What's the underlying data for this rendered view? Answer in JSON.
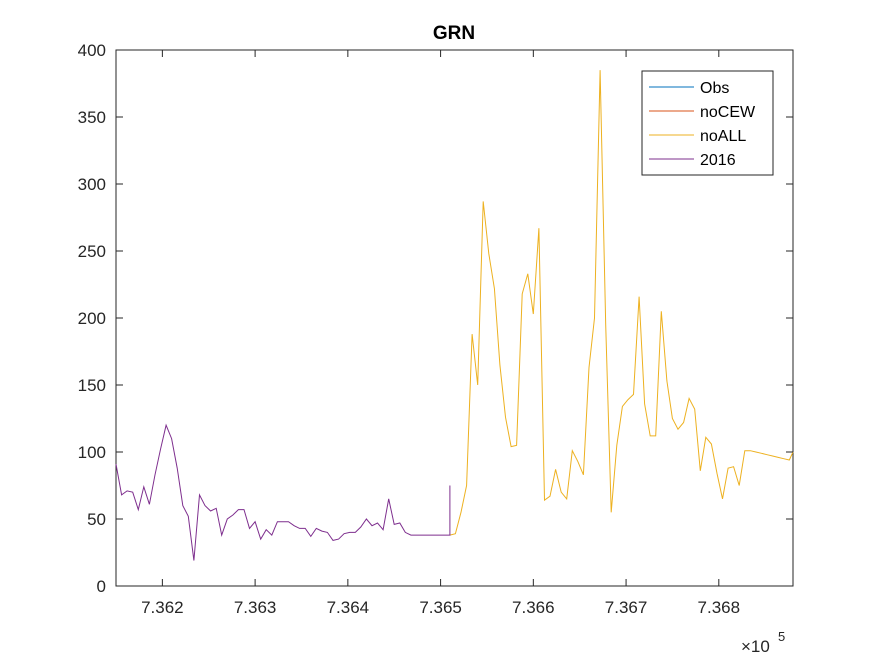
{
  "chart_data": {
    "type": "line",
    "title": "GRN",
    "xlabel": "",
    "ylabel": "",
    "xlim": [
      736150,
      736880
    ],
    "ylim": [
      0,
      400
    ],
    "x_ticks": [
      736200,
      736300,
      736400,
      736500,
      736600,
      736700,
      736800
    ],
    "x_tick_labels": [
      "7.362",
      "7.363",
      "7.364",
      "7.365",
      "7.366",
      "7.367",
      "7.368"
    ],
    "x_exponent_base": "×10",
    "x_exponent_power": "5",
    "y_ticks": [
      0,
      50,
      100,
      150,
      200,
      250,
      300,
      350,
      400
    ],
    "y_tick_labels": [
      "0",
      "50",
      "100",
      "150",
      "200",
      "250",
      "300",
      "350",
      "400"
    ],
    "grid": false,
    "legend_position": "top-right",
    "series": [
      {
        "name": "Obs",
        "color": "#0072BD",
        "x": [],
        "y": []
      },
      {
        "name": "noCEW",
        "color": "#D95319",
        "x": [],
        "y": []
      },
      {
        "name": "noALL",
        "color": "#EDB120",
        "x": [
          736510,
          736516,
          736522,
          736528,
          736534,
          736540,
          736546,
          736552,
          736558,
          736564,
          736570,
          736576,
          736582,
          736588,
          736594,
          736600,
          736606,
          736612,
          736618,
          736624,
          736630,
          736636,
          736642,
          736648,
          736654,
          736660,
          736666,
          736672,
          736678,
          736684,
          736690,
          736696,
          736702,
          736708,
          736714,
          736720,
          736726,
          736732,
          736738,
          736744,
          736750,
          736756,
          736762,
          736768,
          736774,
          736780,
          736786,
          736792,
          736798,
          736804,
          736810,
          736816,
          736822,
          736828,
          736834,
          736840,
          736846,
          736852,
          736858,
          736864,
          736870,
          736876,
          736880
        ],
        "y": [
          38,
          39,
          55,
          75,
          188,
          150,
          287,
          248,
          222,
          165,
          126,
          104,
          105,
          218,
          233,
          203,
          267,
          64,
          67,
          87,
          70,
          65,
          101,
          93,
          83,
          163,
          200,
          385,
          195,
          55,
          105,
          134,
          139,
          143,
          216,
          136,
          112,
          112,
          205,
          153,
          125,
          117,
          122,
          140,
          132,
          86,
          111,
          106,
          84,
          65,
          88,
          89,
          75,
          101,
          101,
          100,
          99,
          98,
          97,
          96,
          95,
          94,
          100
        ]
      },
      {
        "name": "2016",
        "color": "#7E2F8E",
        "x": [
          736150,
          736156,
          736162,
          736168,
          736174,
          736180,
          736186,
          736192,
          736198,
          736204,
          736210,
          736216,
          736222,
          736228,
          736234,
          736240,
          736246,
          736252,
          736258,
          736264,
          736270,
          736276,
          736282,
          736288,
          736294,
          736300,
          736306,
          736312,
          736318,
          736324,
          736330,
          736336,
          736342,
          736348,
          736354,
          736360,
          736366,
          736372,
          736378,
          736384,
          736390,
          736396,
          736402,
          736408,
          736414,
          736420,
          736426,
          736432,
          736438,
          736444,
          736450,
          736456,
          736462,
          736468,
          736474,
          736480,
          736486,
          736492,
          736498,
          736504,
          736510,
          736510
        ],
        "y": [
          91,
          68,
          71,
          70,
          57,
          74,
          61,
          83,
          102,
          120,
          110,
          88,
          60,
          52,
          19,
          68,
          60,
          56,
          58,
          38,
          50,
          53,
          57,
          57,
          43,
          48,
          35,
          42,
          38,
          48,
          48,
          48,
          45,
          43,
          43,
          37,
          43,
          41,
          40,
          34,
          35,
          39,
          40,
          40,
          44,
          50,
          45,
          47,
          42,
          65,
          46,
          47,
          40,
          38,
          38,
          38,
          38,
          38,
          38,
          38,
          38,
          75
        ]
      }
    ]
  }
}
